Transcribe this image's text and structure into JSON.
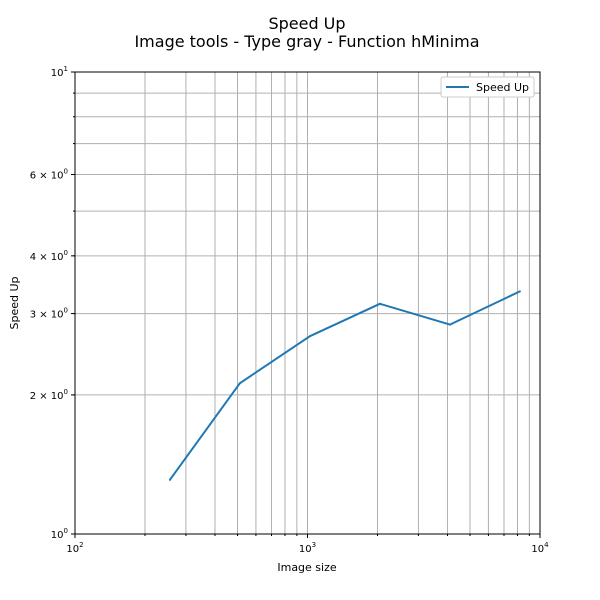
{
  "chart_data": {
    "type": "line",
    "title": "Speed Up",
    "subtitle": "Image tools - Type gray - Function hMinima",
    "xlabel": "Image size",
    "ylabel": "Speed Up",
    "xscale": "log",
    "yscale": "log",
    "xlim": [
      100,
      10000
    ],
    "ylim": [
      1,
      10
    ],
    "grid": true,
    "legend_position": "top-right",
    "x_ticks": [
      {
        "base": "10",
        "exp": "2",
        "value": 100
      },
      {
        "base": "10",
        "exp": "3",
        "value": 1000
      },
      {
        "base": "10",
        "exp": "4",
        "value": 10000
      }
    ],
    "y_ticks": [
      {
        "mant": "10",
        "exp": "0",
        "value": 1
      },
      {
        "mant": "2 × 10",
        "exp": "0",
        "value": 2
      },
      {
        "mant": "3 × 10",
        "exp": "0",
        "value": 3
      },
      {
        "mant": "4 × 10",
        "exp": "0",
        "value": 4
      },
      {
        "mant": "6 × 10",
        "exp": "0",
        "value": 6
      },
      {
        "mant": "10",
        "exp": "1",
        "value": 10
      }
    ],
    "series": [
      {
        "name": "Speed Up",
        "color": "#1f77b4",
        "x": [
          256,
          512,
          1024,
          2048,
          4096,
          8192
        ],
        "y": [
          1.31,
          2.12,
          2.68,
          3.15,
          2.84,
          3.35
        ]
      }
    ]
  }
}
